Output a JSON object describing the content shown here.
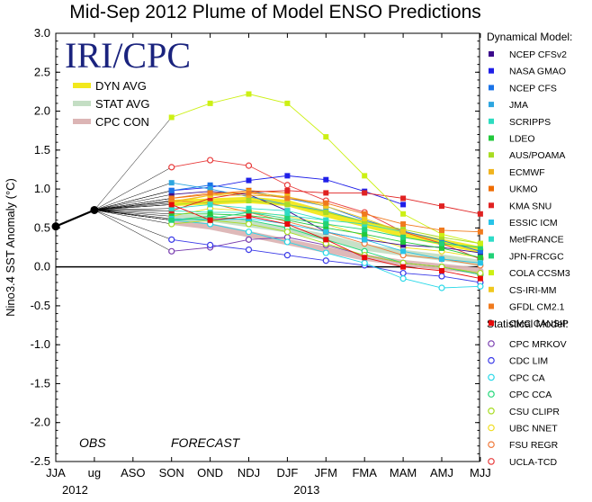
{
  "chart_data": {
    "type": "line",
    "title": "Mid-Sep 2012 Plume of Model ENSO Predictions",
    "ylabel": "Nino3.4 SST Anomaly (°C)",
    "ylim": [
      -2.5,
      3.0
    ],
    "yticks": [
      "3.0",
      "2.5",
      "2.0",
      "1.5",
      "1.0",
      "0.5",
      "0.0",
      "-0.5",
      "-1.0",
      "-1.5",
      "-2.0",
      "-2.5"
    ],
    "x": [
      "JJA",
      "ug",
      "ASO",
      "SON",
      "OND",
      "NDJ",
      "DJF",
      "JFM",
      "FMA",
      "MAM",
      "AMJ",
      "MJJ"
    ],
    "year_labels": [
      {
        "text": "2012",
        "at": 0.5
      },
      {
        "text": "2013",
        "at": 6.5
      }
    ],
    "grid": false,
    "logo": "IRI/CPC",
    "obs_label": "OBS",
    "forecast_label": "FORECAST",
    "observed": {
      "x": [
        0,
        1
      ],
      "values": [
        0.52,
        0.73
      ]
    },
    "averages": [
      {
        "name": "DYN AVG",
        "color": "#f2e81c",
        "values": [
          0.82,
          0.84,
          0.86,
          0.82,
          0.68,
          0.55,
          0.42,
          0.32,
          0.22
        ]
      },
      {
        "name": "STAT AVG",
        "color": "#c4dec4",
        "values": [
          0.63,
          0.62,
          0.55,
          0.48,
          0.38,
          0.25,
          0.18,
          0.12,
          0.05
        ]
      },
      {
        "name": "CPC CON",
        "color": "#dcb5b5",
        "values": [
          0.58,
          0.52,
          0.42,
          0.32,
          0.22,
          0.12,
          0.05,
          0.0,
          -0.05
        ]
      }
    ],
    "legend_dynamical_title": "Dynamical Model:",
    "legend_statistical_title": "Statistical Model:",
    "dynamical": [
      {
        "name": "NCEP CFSv2",
        "color": "#3b0a8c",
        "values": [
          0.93,
          0.97,
          0.93,
          0.72,
          0.45,
          0.35,
          0.28,
          0.25,
          0.18
        ]
      },
      {
        "name": "NASA GMAO",
        "color": "#1f1fe8",
        "values": [
          0.98,
          1.02,
          1.11,
          1.17,
          1.12,
          0.97,
          0.8,
          null,
          null
        ]
      },
      {
        "name": "NCEP CFS",
        "color": "#1a73e8",
        "values": [
          0.98,
          1.05,
          0.98,
          0.88,
          0.78,
          0.6,
          0.46,
          0.34,
          0.2
        ]
      },
      {
        "name": "JMA",
        "color": "#2da6e0",
        "values": [
          1.08,
          1.0,
          0.9,
          0.8,
          0.72,
          0.58,
          null,
          null,
          null
        ]
      },
      {
        "name": "SCRIPPS",
        "color": "#2ddcc0",
        "values": [
          0.72,
          0.7,
          0.7,
          0.66,
          0.6,
          0.55,
          0.45,
          null,
          null
        ]
      },
      {
        "name": "LDEO",
        "color": "#22c83c",
        "values": [
          0.68,
          0.68,
          0.66,
          0.6,
          0.5,
          0.42,
          0.32,
          0.24,
          0.12
        ]
      },
      {
        "name": "AUS/POAMA",
        "color": "#a8dc22",
        "values": [
          0.8,
          0.83,
          0.85,
          0.8,
          0.7,
          0.58,
          0.48,
          0.38,
          0.3
        ]
      },
      {
        "name": "ECMWF",
        "color": "#f0b41e",
        "values": [
          0.84,
          0.92,
          0.92,
          0.9,
          0.8,
          null,
          null,
          null,
          null
        ]
      },
      {
        "name": "UKMO",
        "color": "#ef6c00",
        "values": [
          0.88,
          0.93,
          0.98,
          0.95,
          null,
          null,
          null,
          null,
          null
        ]
      },
      {
        "name": "KMA SNU",
        "color": "#e02222",
        "values": [
          0.72,
          0.88,
          0.96,
          0.98,
          0.95,
          0.95,
          0.88,
          0.78,
          0.68
        ]
      },
      {
        "name": "ESSIC ICM",
        "color": "#28c3e8",
        "values": [
          0.62,
          0.6,
          0.62,
          0.55,
          0.45,
          0.35,
          0.2,
          0.1,
          0.05
        ]
      },
      {
        "name": "MetFRANCE",
        "color": "#2edcc8",
        "values": [
          0.75,
          0.8,
          0.75,
          0.72,
          0.6,
          null,
          null,
          null,
          null
        ]
      },
      {
        "name": "JPN-FRCGC",
        "color": "#22d278",
        "values": [
          0.6,
          0.62,
          0.7,
          0.62,
          0.55,
          0.48,
          0.38,
          0.3,
          0.25
        ]
      },
      {
        "name": "COLA CCSM3",
        "color": "#ccf014",
        "values": [
          1.92,
          2.1,
          2.22,
          2.1,
          1.67,
          1.17,
          0.68,
          0.42,
          0.3
        ]
      },
      {
        "name": "CS-IRI-MM",
        "color": "#f0c81e",
        "values": [
          0.82,
          0.92,
          0.96,
          0.9,
          0.78,
          0.62,
          0.45,
          null,
          null
        ]
      },
      {
        "name": "GFDL CM2.1",
        "color": "#f07a1e",
        "values": [
          0.88,
          0.95,
          0.95,
          0.88,
          0.82,
          0.68,
          0.55,
          0.47,
          0.45
        ]
      },
      {
        "name": "CMC CANSIP",
        "color": "#e80a0a",
        "values": [
          0.8,
          0.6,
          0.65,
          0.55,
          0.35,
          0.12,
          0.0,
          -0.05,
          -0.15
        ]
      }
    ],
    "statistical": [
      {
        "name": "CPC MRKOV",
        "color": "#7a3fb0",
        "values": [
          0.2,
          0.25,
          0.35,
          0.38,
          0.28,
          0.15,
          0.05,
          0.0,
          -0.1
        ]
      },
      {
        "name": "CDC LIM",
        "color": "#3a3ae8",
        "values": [
          0.35,
          0.28,
          0.22,
          0.15,
          0.08,
          0.02,
          -0.08,
          -0.12,
          -0.2
        ]
      },
      {
        "name": "CPC CA",
        "color": "#28d8e8",
        "values": [
          0.6,
          0.55,
          0.45,
          0.32,
          0.18,
          0.05,
          -0.15,
          -0.27,
          -0.25
        ]
      },
      {
        "name": "CPC CCA",
        "color": "#22d878",
        "values": [
          0.6,
          0.65,
          0.6,
          0.5,
          0.35,
          0.2,
          0.05,
          0.0,
          -0.1
        ]
      },
      {
        "name": "CSU CLIPR",
        "color": "#a8dc22",
        "values": [
          0.55,
          0.6,
          0.55,
          0.45,
          0.3,
          0.15,
          0.05,
          0.0,
          -0.08
        ]
      },
      {
        "name": "UBC NNET",
        "color": "#f0dc1e",
        "values": [
          0.65,
          0.75,
          0.72,
          0.65,
          0.55,
          0.4,
          0.25,
          0.2,
          0.12
        ]
      },
      {
        "name": "FSU REGR",
        "color": "#f07a3c",
        "values": [
          0.85,
          0.82,
          0.7,
          0.58,
          0.45,
          0.3,
          0.15,
          0.1,
          0.02
        ]
      },
      {
        "name": "UCLA-TCD",
        "color": "#e83c3c",
        "values": [
          1.28,
          1.37,
          1.3,
          1.05,
          0.85,
          0.7,
          0.45,
          0.3,
          0.1
        ]
      }
    ]
  }
}
